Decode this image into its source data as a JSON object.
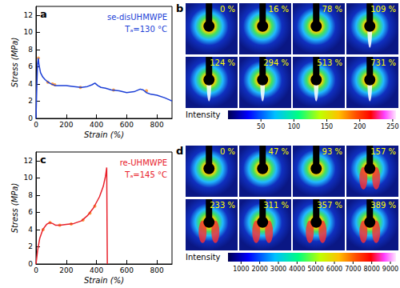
{
  "chart_data": [
    {
      "type": "line",
      "panel": "a",
      "x_label": "Strain (%)",
      "y_label": "Stress (MPa)",
      "xlim": [
        0,
        900
      ],
      "xticks": [
        0,
        200,
        400,
        600,
        800
      ],
      "ylim": [
        0,
        13
      ],
      "yticks": [
        0,
        2,
        4,
        6,
        8,
        10,
        12
      ],
      "grid": false,
      "annotations": [
        {
          "text": "se-disUHMWPE",
          "color": "#1c3fd6"
        },
        {
          "text": "Tₐ=130 °C",
          "color": "#1c3fd6"
        }
      ],
      "series": [
        {
          "type": "line",
          "color": "#1c3fd6",
          "line_style": "solid",
          "x": [
            0,
            5,
            10,
            15,
            20,
            30,
            45,
            60,
            80,
            100,
            130,
            160,
            200,
            250,
            300,
            340,
            370,
            390,
            410,
            430,
            460,
            500,
            550,
            600,
            650,
            690,
            710,
            730,
            760,
            800,
            850,
            890,
            900
          ],
          "values": [
            0,
            3.5,
            6.3,
            7.0,
            6.2,
            5.3,
            4.8,
            4.5,
            4.2,
            4.0,
            3.8,
            3.8,
            3.8,
            3.7,
            3.6,
            3.7,
            3.9,
            4.1,
            3.8,
            3.6,
            3.5,
            3.3,
            3.2,
            3.0,
            3.1,
            3.4,
            3.3,
            3.0,
            2.8,
            2.7,
            2.4,
            2.1,
            2.0
          ]
        },
        {
          "type": "scatter",
          "color": "#ff8c1a",
          "marker": "circle",
          "x": [
            16,
            78,
            109,
            124,
            294,
            513,
            731
          ],
          "values": [
            7.0,
            4.2,
            4.0,
            3.9,
            3.6,
            3.3,
            3.2
          ]
        }
      ]
    },
    {
      "type": "line",
      "panel": "c",
      "x_label": "Strain (%)",
      "y_label": "Stress (MPa)",
      "xlim": [
        0,
        900
      ],
      "xticks": [
        0,
        200,
        400,
        600,
        800
      ],
      "ylim": [
        0,
        13
      ],
      "yticks": [
        0,
        2,
        4,
        6,
        8,
        10,
        12
      ],
      "grid": false,
      "annotations": [
        {
          "text": "re-UHMWPE",
          "color": "#e8202a"
        },
        {
          "text": "Tₐ=145 °C",
          "color": "#e8202a"
        }
      ],
      "series": [
        {
          "type": "line",
          "color": "#e8202a",
          "line_style": "solid",
          "x": [
            0,
            10,
            25,
            45,
            70,
            90,
            110,
            130,
            160,
            200,
            250,
            300,
            340,
            380,
            420,
            445,
            460,
            468,
            470,
            472
          ],
          "values": [
            0,
            1.5,
            3.0,
            4.0,
            4.6,
            4.8,
            4.7,
            4.5,
            4.5,
            4.6,
            4.7,
            5.0,
            5.6,
            6.5,
            7.8,
            9.0,
            10.2,
            11.2,
            5.0,
            0
          ]
        },
        {
          "type": "scatter",
          "color": "#ff8c1a",
          "marker": "circle",
          "x": [
            47,
            93,
            157,
            233,
            311,
            357,
            389
          ],
          "values": [
            4.0,
            4.8,
            4.5,
            4.65,
            5.1,
            5.9,
            6.7
          ]
        }
      ]
    }
  ],
  "image_panels": [
    {
      "panel": "b",
      "labels": [
        "0 %",
        "16 %",
        "78 %",
        "109 %",
        "124 %",
        "294 %",
        "513 %",
        "731 %"
      ],
      "colorbar": {
        "label": "Intensity",
        "range": [
          0,
          255
        ],
        "ticks": [
          50,
          100,
          150,
          200,
          250
        ]
      }
    },
    {
      "panel": "d",
      "labels": [
        "0 %",
        "47 %",
        "93 %",
        "157 %",
        "233 %",
        "311 %",
        "357 %",
        "389 %"
      ],
      "colorbar": {
        "label": "Intensity",
        "range": [
          300,
          9300
        ],
        "ticks": [
          1000,
          2000,
          3000,
          4000,
          5000,
          6000,
          7000,
          8000,
          9000
        ]
      }
    }
  ]
}
